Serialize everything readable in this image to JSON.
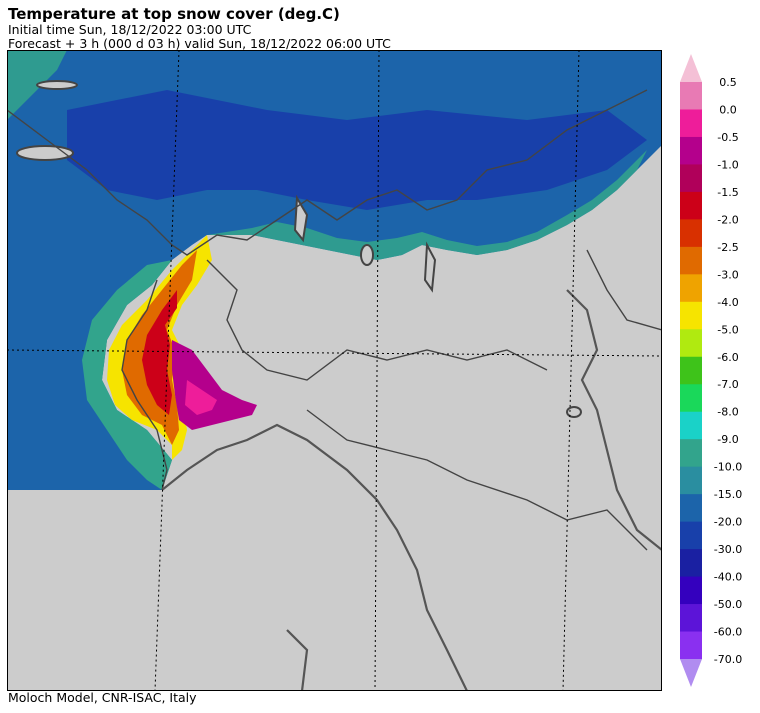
{
  "header": {
    "title": "Temperature at top snow cover (deg.C)",
    "initial_time": "Initial time  Sun, 18/12/2022  03:00 UTC",
    "forecast": "Forecast  +   3 h  (000 d 03 h)  valid Sun, 18/12/2022 06:00 UTC"
  },
  "footer": {
    "credit": "Moloch Model, CNR-ISAC, Italy"
  },
  "map": {
    "background_color": "#cccccc",
    "border_color": "#444444",
    "regions": [
      "snow-cover-alps-west",
      "snow-cover-alps-central",
      "snow-cover-alps-east",
      "snow-cover-warm-piedmont",
      "lakes"
    ]
  },
  "legend": {
    "labels": [
      "0.5",
      "0.0",
      "-0.5",
      "-1.0",
      "-1.5",
      "-2.0",
      "-2.5",
      "-3.0",
      "-4.0",
      "-5.0",
      "-6.0",
      "-7.0",
      "-8.0",
      "-9.0",
      "-10.0",
      "-15.0",
      "-20.0",
      "-30.0",
      "-40.0",
      "-50.0",
      "-60.0",
      "-70.0"
    ],
    "colors": [
      "#f4c0d6",
      "#e87ab4",
      "#ee1d9a",
      "#b4008c",
      "#b0005a",
      "#cc0018",
      "#d83000",
      "#e06a00",
      "#efa300",
      "#f6e400",
      "#b0ea10",
      "#3ec31a",
      "#1ad85a",
      "#1ad2c8",
      "#32a48c",
      "#2a8ea0",
      "#1c64aa",
      "#1840aa",
      "#1a20a2",
      "#3400be",
      "#5c14d8",
      "#8a30f0",
      "#b08cf0"
    ]
  }
}
